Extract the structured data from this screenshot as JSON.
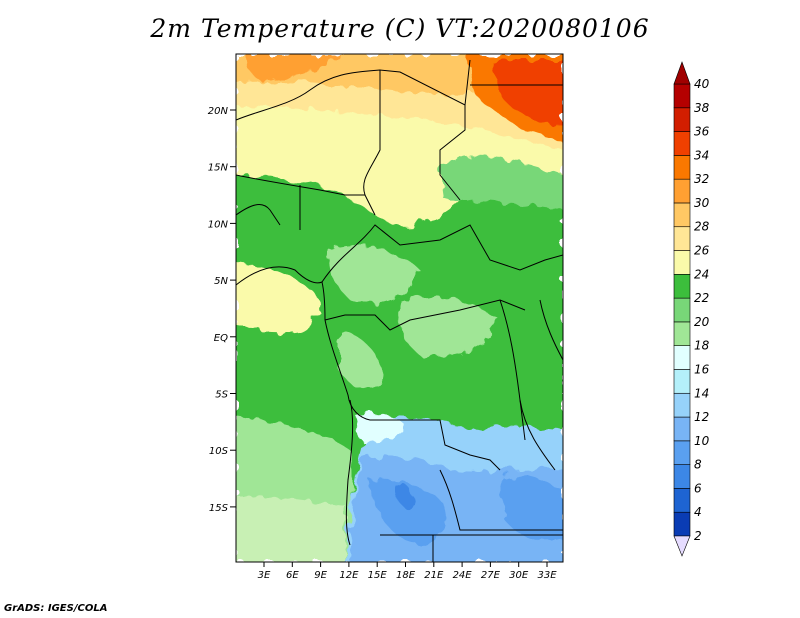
{
  "title": "2m Temperature (C) VT:2020080106",
  "credit": "GrADS: IGES/COLA",
  "map": {
    "lat_labels": [
      "20N",
      "15N",
      "10N",
      "5N",
      "EQ",
      "5S",
      "10S",
      "15S"
    ],
    "lon_labels": [
      "3E",
      "6E",
      "9E",
      "12E",
      "15E",
      "18E",
      "21E",
      "24E",
      "27E",
      "30E",
      "33E"
    ],
    "extent": {
      "lon": [
        0,
        35
      ],
      "lat": [
        -19.5,
        24.5
      ]
    }
  },
  "colorbar": {
    "labels": [
      "2",
      "4",
      "6",
      "8",
      "10",
      "12",
      "14",
      "16",
      "18",
      "20",
      "22",
      "24",
      "26",
      "28",
      "30",
      "32",
      "34",
      "36",
      "38",
      "40"
    ],
    "colors": [
      "#0c0c80",
      "#0a3cb4",
      "#1e64d2",
      "#3c87e6",
      "#5aa0f0",
      "#78b4f5",
      "#96d2fa",
      "#b4f0fa",
      "#e1ffff",
      "#a0e696",
      "#78d778",
      "#3cbe3c",
      "#fafaaa",
      "#ffe696",
      "#ffc864",
      "#ffa032",
      "#fa7800",
      "#f04000",
      "#d21e00",
      "#b40000"
    ],
    "under_color": "#e6dcff",
    "over_color": "#a00000"
  }
}
